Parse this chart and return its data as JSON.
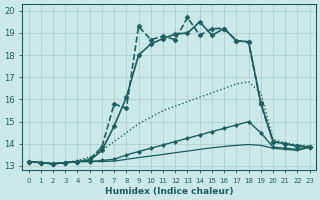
{
  "xlabel": "Humidex (Indice chaleur)",
  "xmin": -0.5,
  "xmax": 23.5,
  "ymin": 12.8,
  "ymax": 20.3,
  "yticks": [
    13,
    14,
    15,
    16,
    17,
    18,
    19,
    20
  ],
  "xticks": [
    0,
    1,
    2,
    3,
    4,
    5,
    6,
    7,
    8,
    9,
    10,
    11,
    12,
    13,
    14,
    15,
    16,
    17,
    18,
    19,
    20,
    21,
    22,
    23
  ],
  "background_color": "#cce8e8",
  "grid_color": "#aacccc",
  "line_color": "#1a6060",
  "series": [
    {
      "x": [
        0,
        1,
        2,
        3,
        4,
        5,
        6,
        7,
        8,
        9,
        10,
        11,
        12,
        13,
        14,
        15,
        16,
        17,
        18,
        19,
        20,
        21,
        22,
        23
      ],
      "y": [
        13.2,
        13.15,
        13.1,
        13.15,
        13.2,
        13.3,
        13.85,
        15.8,
        15.6,
        19.3,
        18.7,
        18.85,
        18.7,
        19.7,
        18.9,
        19.2,
        19.2,
        18.65,
        18.6,
        15.8,
        14.1,
        14.0,
        13.9,
        13.85
      ],
      "linestyle": "--",
      "marker": "D",
      "linewidth": 1.2,
      "markersize": 2.5
    },
    {
      "x": [
        0,
        1,
        2,
        3,
        4,
        5,
        6,
        7,
        8,
        9,
        10,
        11,
        12,
        13,
        14,
        15,
        16,
        17,
        18,
        19,
        20,
        21,
        22,
        23
      ],
      "y": [
        13.2,
        13.15,
        13.1,
        13.15,
        13.2,
        13.25,
        13.7,
        14.8,
        16.1,
        18.0,
        18.5,
        18.75,
        18.95,
        19.0,
        19.5,
        18.9,
        19.2,
        18.65,
        18.6,
        15.85,
        14.1,
        14.0,
        13.9,
        13.85
      ],
      "linestyle": "-",
      "marker": "D",
      "linewidth": 1.2,
      "markersize": 2.5
    },
    {
      "x": [
        0,
        1,
        2,
        3,
        4,
        5,
        6,
        7,
        8,
        9,
        10,
        11,
        12,
        13,
        14,
        15,
        16,
        17,
        18,
        19,
        20,
        21,
        22,
        23
      ],
      "y": [
        13.2,
        13.15,
        13.1,
        13.15,
        13.25,
        13.4,
        13.7,
        14.1,
        14.5,
        14.9,
        15.2,
        15.5,
        15.7,
        15.9,
        16.1,
        16.3,
        16.5,
        16.7,
        16.8,
        16.3,
        14.2,
        14.05,
        13.95,
        13.9
      ],
      "linestyle": ":",
      "marker": null,
      "linewidth": 1.0,
      "markersize": 0
    },
    {
      "x": [
        0,
        1,
        2,
        3,
        4,
        5,
        6,
        7,
        8,
        9,
        10,
        11,
        12,
        13,
        14,
        15,
        16,
        17,
        18,
        19,
        20,
        21,
        22,
        23
      ],
      "y": [
        13.2,
        13.15,
        13.1,
        13.15,
        13.2,
        13.2,
        13.25,
        13.3,
        13.5,
        13.65,
        13.8,
        13.95,
        14.1,
        14.25,
        14.4,
        14.55,
        14.7,
        14.85,
        15.0,
        14.5,
        13.85,
        13.8,
        13.75,
        13.85
      ],
      "linestyle": "-",
      "marker": "D",
      "linewidth": 1.0,
      "markersize": 2.0
    },
    {
      "x": [
        0,
        1,
        2,
        3,
        4,
        5,
        6,
        7,
        8,
        9,
        10,
        11,
        12,
        13,
        14,
        15,
        16,
        17,
        18,
        19,
        20,
        21,
        22,
        23
      ],
      "y": [
        13.2,
        13.15,
        13.1,
        13.15,
        13.2,
        13.2,
        13.2,
        13.22,
        13.3,
        13.38,
        13.45,
        13.52,
        13.6,
        13.67,
        13.75,
        13.82,
        13.88,
        13.93,
        13.97,
        13.93,
        13.8,
        13.75,
        13.7,
        13.85
      ],
      "linestyle": "-",
      "marker": null,
      "linewidth": 0.9,
      "markersize": 0
    }
  ]
}
